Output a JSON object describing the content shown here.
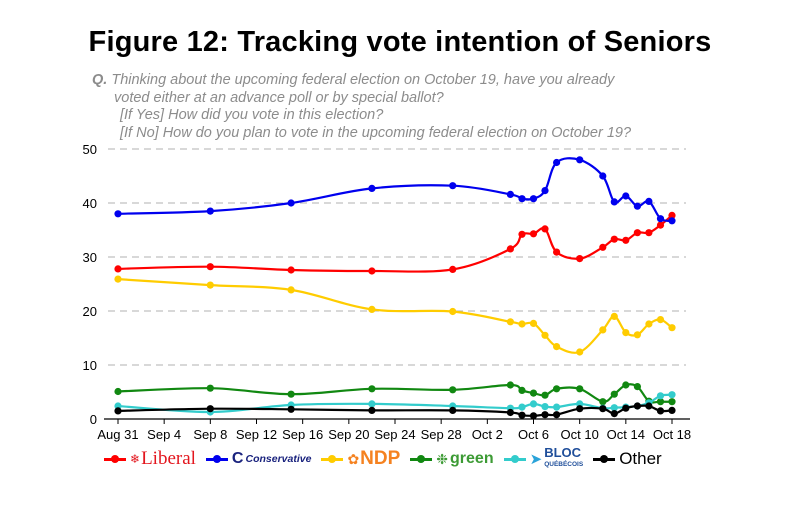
{
  "title": "Figure 12: Tracking vote intention of Seniors",
  "question": {
    "q_label": "Q.",
    "line1": "Thinking about the upcoming federal election on October 19, have you already",
    "line2": "voted either at an advance poll or by special ballot?",
    "line3": "[If Yes] How did you vote in this election?",
    "line4": "[If No] How do you plan to vote in the upcoming federal election on October 19?"
  },
  "chart_data": {
    "type": "line",
    "x_start": "2015-08-31",
    "x_end": "2015-10-18",
    "xticks": [
      "Aug 31",
      "Sep 4",
      "Sep 8",
      "Sep 12",
      "Sep 16",
      "Sep 20",
      "Sep 24",
      "Sep 28",
      "Oct 2",
      "Oct 6",
      "Oct 10",
      "Oct 14",
      "Oct 18"
    ],
    "yticks": [
      0,
      10,
      20,
      30,
      40,
      50
    ],
    "ylim": [
      0,
      50
    ],
    "grid": "horizontal dashed",
    "legend_position": "bottom",
    "series": [
      {
        "name": "Liberal",
        "color": "#ff0000",
        "x": [
          "2015-08-31",
          "2015-09-08",
          "2015-09-15",
          "2015-09-22",
          "2015-09-29",
          "2015-10-04",
          "2015-10-05",
          "2015-10-06",
          "2015-10-07",
          "2015-10-08",
          "2015-10-10",
          "2015-10-12",
          "2015-10-13",
          "2015-10-14",
          "2015-10-15",
          "2015-10-16",
          "2015-10-17",
          "2015-10-18"
        ],
        "y": [
          27.8,
          28.2,
          27.6,
          27.4,
          27.7,
          31.5,
          34.2,
          34.3,
          35.2,
          30.9,
          29.7,
          31.8,
          33.3,
          33.1,
          34.5,
          34.5,
          35.9,
          37.7
        ]
      },
      {
        "name": "Conservative",
        "color": "#0000ee",
        "x": [
          "2015-08-31",
          "2015-09-08",
          "2015-09-15",
          "2015-09-22",
          "2015-09-29",
          "2015-10-04",
          "2015-10-05",
          "2015-10-06",
          "2015-10-07",
          "2015-10-08",
          "2015-10-10",
          "2015-10-12",
          "2015-10-13",
          "2015-10-14",
          "2015-10-15",
          "2015-10-16",
          "2015-10-17",
          "2015-10-18"
        ],
        "y": [
          38.0,
          38.5,
          40.0,
          42.7,
          43.2,
          41.6,
          40.8,
          40.8,
          42.3,
          47.5,
          48.0,
          45.0,
          40.2,
          41.3,
          39.4,
          40.3,
          37.1,
          36.7
        ]
      },
      {
        "name": "NDP",
        "color": "#ffcc00",
        "x": [
          "2015-08-31",
          "2015-09-08",
          "2015-09-15",
          "2015-09-22",
          "2015-09-29",
          "2015-10-04",
          "2015-10-05",
          "2015-10-06",
          "2015-10-07",
          "2015-10-08",
          "2015-10-10",
          "2015-10-12",
          "2015-10-13",
          "2015-10-14",
          "2015-10-15",
          "2015-10-16",
          "2015-10-17",
          "2015-10-18"
        ],
        "y": [
          25.9,
          24.8,
          23.9,
          20.3,
          19.9,
          18.0,
          17.6,
          17.7,
          15.5,
          13.4,
          12.4,
          16.5,
          19.0,
          16.0,
          15.6,
          17.6,
          18.4,
          16.9
        ]
      },
      {
        "name": "Green",
        "color": "#118811",
        "x": [
          "2015-08-31",
          "2015-09-08",
          "2015-09-15",
          "2015-09-22",
          "2015-09-29",
          "2015-10-04",
          "2015-10-05",
          "2015-10-06",
          "2015-10-07",
          "2015-10-08",
          "2015-10-10",
          "2015-10-12",
          "2015-10-13",
          "2015-10-14",
          "2015-10-15",
          "2015-10-16",
          "2015-10-17",
          "2015-10-18"
        ],
        "y": [
          5.1,
          5.7,
          4.6,
          5.6,
          5.4,
          6.3,
          5.3,
          4.8,
          4.4,
          5.6,
          5.6,
          3.2,
          4.6,
          6.3,
          6.0,
          3.3,
          3.2,
          3.2
        ]
      },
      {
        "name": "Bloc Québécois",
        "color": "#33cccc",
        "x": [
          "2015-08-31",
          "2015-09-08",
          "2015-09-15",
          "2015-09-22",
          "2015-09-29",
          "2015-10-04",
          "2015-10-05",
          "2015-10-06",
          "2015-10-07",
          "2015-10-08",
          "2015-10-10",
          "2015-10-12",
          "2015-10-13",
          "2015-10-14",
          "2015-10-15",
          "2015-10-16",
          "2015-10-17",
          "2015-10-18"
        ],
        "y": [
          2.4,
          1.3,
          2.6,
          2.8,
          2.4,
          2.0,
          2.2,
          2.8,
          2.3,
          2.2,
          2.8,
          2.0,
          2.1,
          2.2,
          2.4,
          3.0,
          4.3,
          4.5
        ]
      },
      {
        "name": "Other",
        "color": "#000000",
        "x": [
          "2015-08-31",
          "2015-09-08",
          "2015-09-15",
          "2015-09-22",
          "2015-09-29",
          "2015-10-04",
          "2015-10-05",
          "2015-10-06",
          "2015-10-07",
          "2015-10-08",
          "2015-10-10",
          "2015-10-12",
          "2015-10-13",
          "2015-10-14",
          "2015-10-15",
          "2015-10-16",
          "2015-10-17",
          "2015-10-18"
        ],
        "y": [
          1.5,
          1.9,
          1.8,
          1.6,
          1.6,
          1.2,
          0.7,
          0.6,
          0.8,
          0.8,
          1.9,
          1.9,
          1.0,
          2.0,
          2.4,
          2.4,
          1.5,
          1.6
        ]
      }
    ]
  },
  "legend": {
    "liberal": "Liberal",
    "conservative": "Conservative",
    "ndp": "NDP",
    "green": "green",
    "bloc": "BLOC",
    "bloc_sub": "QUÉBÉCOIS",
    "other": "Other"
  }
}
